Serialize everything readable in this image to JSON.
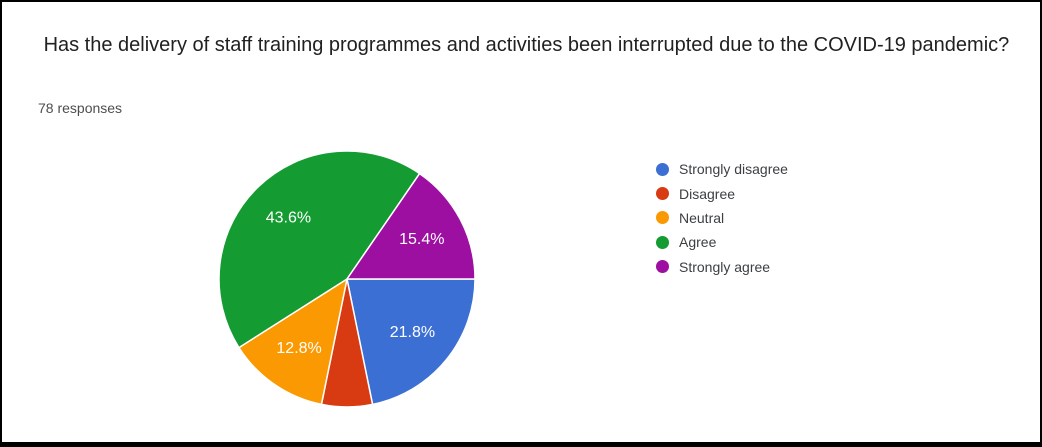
{
  "header": {
    "title": " Has the delivery of staff training programmes and activities been interrupted due to the COVID-19 pandemic?",
    "responses_count": "78 responses"
  },
  "chart_data": {
    "type": "pie",
    "title": "Has the delivery of staff training programmes and activities been interrupted due to the COVID-19 pandemic?",
    "subtitle": "78 responses",
    "total_responses": 78,
    "legend_position": "right",
    "start_angle_deg": 90,
    "direction": "clockwise",
    "label_color": "#ffffff",
    "slice_gap_color": "#ffffff",
    "slices": [
      {
        "label": "Strongly disagree",
        "percent": 21.8,
        "display": "21.8%",
        "color": "#3C6FD3",
        "show_label": true
      },
      {
        "label": "Disagree",
        "percent": 6.4,
        "display": "",
        "color": "#D83A12",
        "show_label": false
      },
      {
        "label": "Neutral",
        "percent": 12.8,
        "display": "12.8%",
        "color": "#FB9902",
        "show_label": true
      },
      {
        "label": "Agree",
        "percent": 43.6,
        "display": "43.6%",
        "color": "#149B31",
        "show_label": true
      },
      {
        "label": "Strongly agree",
        "percent": 15.4,
        "display": "15.4%",
        "color": "#9C0FA0",
        "show_label": true
      }
    ]
  }
}
